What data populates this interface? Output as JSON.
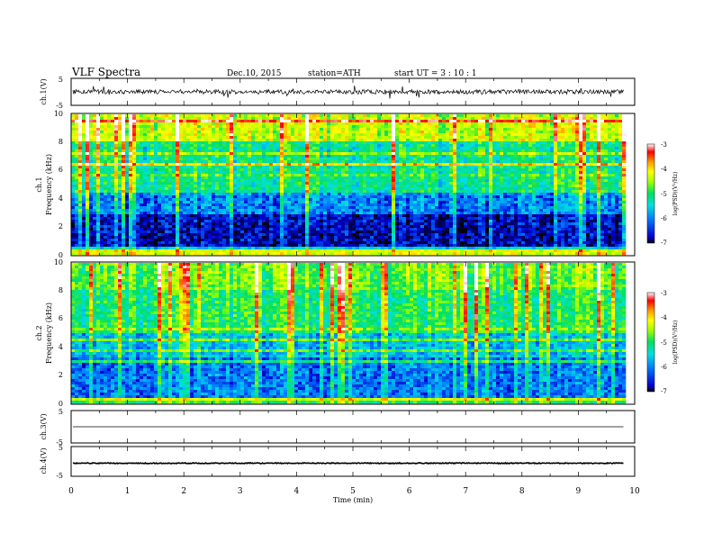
{
  "header": {
    "title": "VLF  Spectra",
    "date": "Dec.10, 2015",
    "station": "station=ATH",
    "start_time": "start  UT  =   3  : 10 : 1"
  },
  "chart_data": [
    {
      "id": "ch1-waveform",
      "type": "line",
      "ylabel": "ch.1(V)",
      "ylim": [
        -5,
        5
      ],
      "y_ticks": [
        "5",
        "-5"
      ],
      "baseline_v": 0,
      "noise_amplitude_v": 0.8,
      "spike_amplitude_v": 2.5
    },
    {
      "id": "ch1-spectrogram",
      "type": "heatmap",
      "channel_label": "ch.1",
      "ylabel": "Frequency  (kHz)",
      "ylim": [
        0,
        10
      ],
      "y_ticks": [
        "0",
        "2",
        "4",
        "6",
        "8",
        "10"
      ],
      "xlim": [
        0,
        9.8
      ],
      "colorbar": {
        "label": "log(PSD)(V²/Hz)",
        "range": [
          -7,
          -3
        ],
        "ticks": [
          "-3",
          "-4",
          "-5",
          "-6",
          "-7"
        ],
        "colors": [
          "#000000",
          "#0000d0",
          "#0080ff",
          "#00e0e0",
          "#00e060",
          "#a0ff00",
          "#ffff00",
          "#ff9900",
          "#ff0000",
          "#ffffff"
        ]
      },
      "spectral_bands": [
        {
          "f_low_khz": 0,
          "f_high_khz": 0.3,
          "log_psd": -4.5
        },
        {
          "f_low_khz": 0.3,
          "f_high_khz": 2.8,
          "log_psd": -6.6
        },
        {
          "f_low_khz": 2.8,
          "f_high_khz": 4.5,
          "log_psd": -6.1
        },
        {
          "f_low_khz": 4.5,
          "f_high_khz": 8.0,
          "log_psd": -5.4
        },
        {
          "f_low_khz": 8.0,
          "f_high_khz": 10,
          "log_psd": -4.6
        }
      ]
    },
    {
      "id": "ch2-spectrogram",
      "type": "heatmap",
      "channel_label": "ch.2",
      "ylabel": "Frequency  (kHz)",
      "ylim": [
        0,
        10
      ],
      "y_ticks": [
        "0",
        "2",
        "4",
        "6",
        "8",
        "10"
      ],
      "xlim": [
        0,
        9.8
      ],
      "colorbar": {
        "label": "log(PSD)(V²/Hz)",
        "range": [
          -7,
          -3
        ],
        "ticks": [
          "-3",
          "-4",
          "-5",
          "-6",
          "-7"
        ],
        "colors": [
          "#000000",
          "#0000d0",
          "#0080ff",
          "#00e0e0",
          "#00e060",
          "#a0ff00",
          "#ffff00",
          "#ff9900",
          "#ff0000",
          "#ffffff"
        ]
      },
      "spectral_bands": [
        {
          "f_low_khz": 0,
          "f_high_khz": 0.3,
          "log_psd": -5.2
        },
        {
          "f_low_khz": 0.3,
          "f_high_khz": 3.2,
          "log_psd": -6.1
        },
        {
          "f_low_khz": 3.2,
          "f_high_khz": 5.0,
          "log_psd": -5.8
        },
        {
          "f_low_khz": 5.0,
          "f_high_khz": 8.0,
          "log_psd": -5.2
        },
        {
          "f_low_khz": 8.0,
          "f_high_khz": 10,
          "log_psd": -4.9
        }
      ]
    },
    {
      "id": "ch3-waveform",
      "type": "line",
      "ylabel": "ch.3(V)",
      "ylim": [
        -5,
        5
      ],
      "y_ticks": [
        "5",
        "-5"
      ],
      "baseline_v": 0,
      "noise_amplitude_v": 0
    },
    {
      "id": "ch4-waveform",
      "type": "line",
      "ylabel": "ch.4(V)",
      "ylim": [
        -5,
        5
      ],
      "y_ticks": [
        "5",
        "-5"
      ],
      "baseline_v": -0.6,
      "noise_amplitude_v": 0.15
    },
    {
      "id": "time-axis",
      "type": "axis",
      "xlabel": "Time  (min)",
      "xlim": [
        0,
        10
      ],
      "x_ticks": [
        "0",
        "1",
        "2",
        "3",
        "4",
        "5",
        "6",
        "7",
        "8",
        "9",
        "10"
      ],
      "data_end_min": 9.8
    }
  ]
}
